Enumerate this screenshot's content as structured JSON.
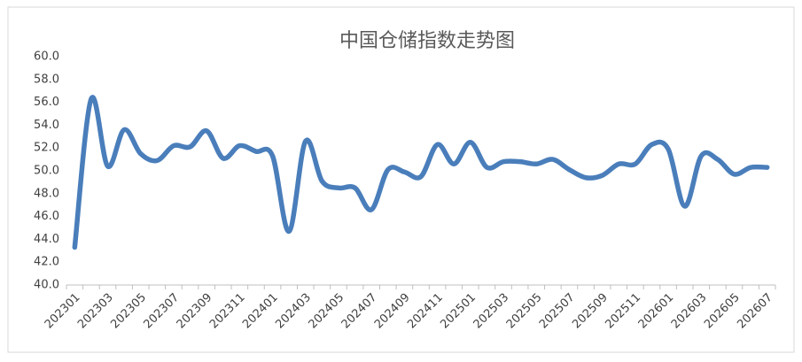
{
  "chart_data": {
    "type": "line",
    "title": "中国仓储指数走势图",
    "categories": [
      "202301",
      null,
      "202303",
      null,
      "202305",
      null,
      "202307",
      null,
      "202309",
      null,
      "202311",
      null,
      "202401",
      null,
      "202403",
      null,
      "202405",
      null,
      "202407",
      null,
      "202409",
      null,
      "202411",
      null,
      "202501",
      null,
      "202503",
      null,
      "202505",
      null,
      "202507",
      null,
      "202509",
      null,
      "202511",
      null,
      "202601",
      null,
      "202603",
      null,
      "202605",
      null,
      "202607"
    ],
    "series": [
      {
        "color": "#4a7ebb",
        "values": [
          43.3,
          56.3,
          50.4,
          53.6,
          51.5,
          50.9,
          52.2,
          52.1,
          53.5,
          51.1,
          52.2,
          51.7,
          51.3,
          44.7,
          52.6,
          49.1,
          48.5,
          48.5,
          46.6,
          50.1,
          49.9,
          49.5,
          52.3,
          50.6,
          52.5,
          50.3,
          50.8,
          50.8,
          50.6,
          51.0,
          50.1,
          49.4,
          49.6,
          50.6,
          50.6,
          52.3,
          51.9,
          46.9,
          51.3,
          51.0,
          49.7,
          50.3,
          50.3
        ]
      }
    ],
    "ylim": [
      40,
      60
    ],
    "yticks": [
      {
        "value": 40,
        "label": "40.0"
      },
      {
        "value": 42,
        "label": "42.0"
      },
      {
        "value": 44,
        "label": "44.0"
      },
      {
        "value": 46,
        "label": "46.0"
      },
      {
        "value": 48,
        "label": "48.0"
      },
      {
        "value": 50,
        "label": "50.0"
      },
      {
        "value": 52,
        "label": "52.0"
      },
      {
        "value": 54,
        "label": "54.0"
      },
      {
        "value": 56,
        "label": "56.0"
      },
      {
        "value": 58,
        "label": "58.0"
      },
      {
        "value": 60,
        "label": "60.0"
      }
    ],
    "grid": false
  }
}
